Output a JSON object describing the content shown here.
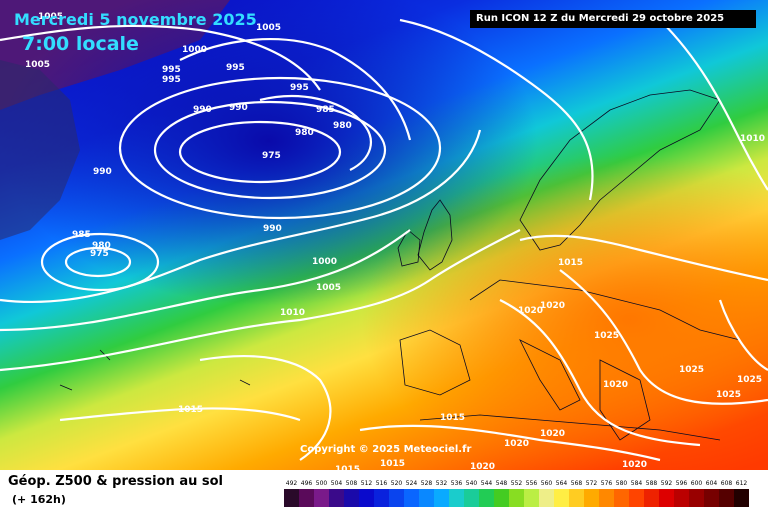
{
  "header": {
    "date": "Mercredi 5 novembre 2025",
    "time": "7:00 locale",
    "run": "Run ICON 12 Z du Mercredi 29 octobre 2025"
  },
  "copyright": "Copyright © 2025 Meteociel.fr",
  "footer": {
    "title": "Géop. Z500 & pression au sol",
    "subtitle": "(+ 162h)"
  },
  "scale": {
    "values": [
      "492",
      "496",
      "500",
      "504",
      "508",
      "512",
      "516",
      "520",
      "524",
      "528",
      "532",
      "536",
      "540",
      "544",
      "548",
      "552",
      "556",
      "560",
      "564",
      "568",
      "572",
      "576",
      "580",
      "584",
      "588",
      "592",
      "596",
      "600",
      "604",
      "608",
      "612"
    ],
    "colors": [
      "#2a0a2a",
      "#5a0a5a",
      "#7a1a8a",
      "#3a0a8a",
      "#1a0aaa",
      "#0a0acc",
      "#0a22dd",
      "#0a44ee",
      "#0a66ff",
      "#0a88ff",
      "#0aaaff",
      "#1acccc",
      "#1acc99",
      "#22cc55",
      "#44cc22",
      "#88dd22",
      "#bbee44",
      "#eeee88",
      "#ffee44",
      "#ffcc22",
      "#ffaa00",
      "#ff8800",
      "#ff6600",
      "#ff4400",
      "#ee2200",
      "#dd0000",
      "#bb0000",
      "#990000",
      "#770000",
      "#550000",
      "#220000"
    ]
  },
  "isobars": [
    {
      "text": "1005"
    },
    {
      "text": "1005"
    },
    {
      "text": "1000"
    },
    {
      "text": "995"
    },
    {
      "text": "995"
    },
    {
      "text": "995"
    },
    {
      "text": "995"
    },
    {
      "text": "990"
    },
    {
      "text": "990"
    },
    {
      "text": "985"
    },
    {
      "text": "980"
    },
    {
      "text": "980"
    },
    {
      "text": "975"
    },
    {
      "text": "990"
    },
    {
      "text": "985"
    },
    {
      "text": "980"
    },
    {
      "text": "975"
    },
    {
      "text": "990"
    },
    {
      "text": "1000"
    },
    {
      "text": "1005"
    },
    {
      "text": "1010"
    },
    {
      "text": "1010"
    },
    {
      "text": "1015"
    },
    {
      "text": "1020"
    },
    {
      "text": "1020"
    },
    {
      "text": "1025"
    },
    {
      "text": "1025"
    },
    {
      "text": "1025"
    },
    {
      "text": "1025"
    },
    {
      "text": "1020"
    },
    {
      "text": "1015"
    },
    {
      "text": "1020"
    },
    {
      "text": "1020"
    },
    {
      "text": "1020"
    },
    {
      "text": "1015"
    },
    {
      "text": "1015"
    },
    {
      "text": "1020"
    },
    {
      "text": "1005"
    },
    {
      "text": "1015"
    }
  ]
}
